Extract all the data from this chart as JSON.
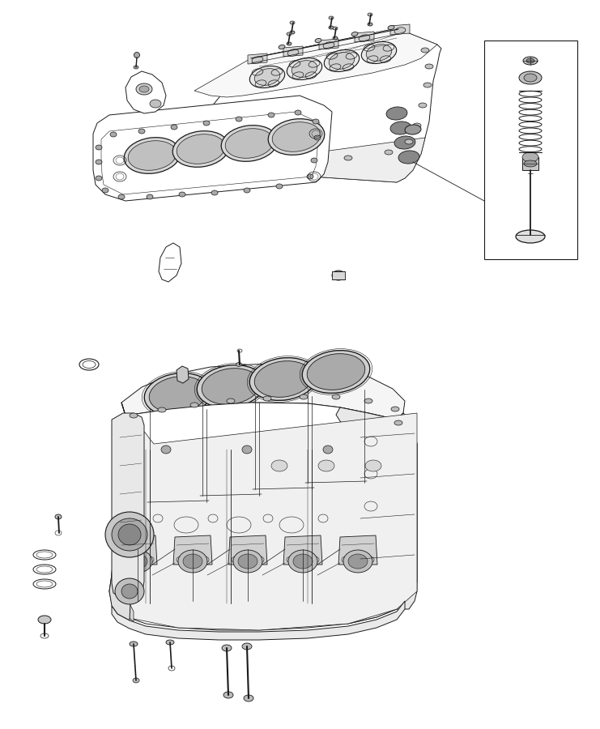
{
  "bg_color": "#ffffff",
  "line_color": "#1a1a1a",
  "line_width": 0.7,
  "fig_width": 7.41,
  "fig_height": 9.0,
  "dpi": 100
}
